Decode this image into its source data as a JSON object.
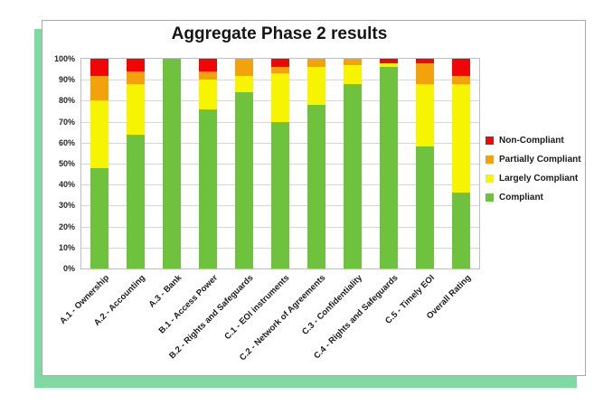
{
  "colors": {
    "shadow_green": "#80d8a3",
    "panel_border": "#a8a8a8",
    "plot_border": "#bdbdbd",
    "gridline": "#d6d6d6",
    "non_compliant": "#f20505",
    "partially_compliant": "#f2a30b",
    "largely_compliant": "#f7f400",
    "compliant": "#6ec23e"
  },
  "chart_data": {
    "type": "bar",
    "stacked": true,
    "title": "Aggregate Phase 2 results",
    "categories": [
      "A.1 - Ownership",
      "A.2 - Accounting",
      "A.3 - Bank",
      "B.1 - Access Power",
      "B.2 - Rights and Safeguards",
      "C.1 - EOI instruments",
      "C.2 - Network of Agreements",
      "C.3 - Confidentiality",
      "C.4 - Rights and Safeguards",
      "C.5 - Timely EOI",
      "Overall Rating"
    ],
    "series": [
      {
        "name": "Compliant",
        "color": "#6ec23e",
        "values": [
          48,
          64,
          100,
          76,
          84,
          70,
          78,
          88,
          96,
          58,
          36
        ]
      },
      {
        "name": "Largely Compliant",
        "color": "#f7f400",
        "values": [
          32,
          24,
          0,
          14,
          8,
          23,
          18,
          9,
          2,
          30,
          52
        ]
      },
      {
        "name": "Partially Compliant",
        "color": "#f2a30b",
        "values": [
          12,
          6,
          0,
          4,
          8,
          3,
          4,
          3,
          0,
          10,
          4
        ]
      },
      {
        "name": "Non-Compliant",
        "color": "#f20505",
        "values": [
          8,
          6,
          0,
          6,
          0,
          4,
          0,
          0,
          2,
          2,
          8
        ]
      }
    ],
    "y_ticks": [
      "100%",
      "90%",
      "80%",
      "70%",
      "60%",
      "50%",
      "40%",
      "30%",
      "20%",
      "10%",
      "0%"
    ],
    "ylim": [
      0,
      100
    ],
    "grid": true,
    "legend": [
      "Non-Compliant",
      "Partially Compliant",
      "Largely Compliant",
      "Compliant"
    ],
    "legend_position": "right"
  }
}
